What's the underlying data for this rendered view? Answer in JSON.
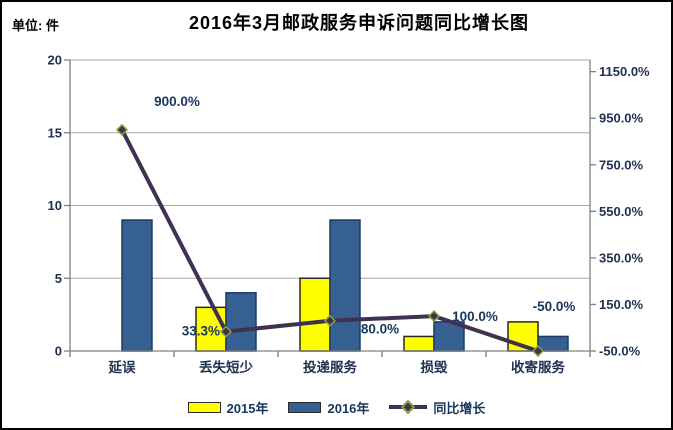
{
  "header": {
    "unit_label": "单位: 件",
    "title": "2016年3月邮政服务申诉问题同比增长图"
  },
  "chart_data": {
    "type": "bar",
    "subtype": "combo-bar-line-dual-axis",
    "title": "2016年3月邮政服务申诉问题同比增长图",
    "unit": "单位: 件",
    "categories": [
      "延误",
      "丢失短少",
      "投递服务",
      "损毁",
      "收寄服务"
    ],
    "series": [
      {
        "name": "2015年",
        "type": "bar",
        "axis": "left",
        "color": "#FFFF00",
        "border_color": "#262626",
        "values": [
          0,
          3,
          5,
          1,
          2
        ]
      },
      {
        "name": "2016年",
        "type": "bar",
        "axis": "left",
        "color": "#376092",
        "border_color": "#1F3864",
        "values": [
          9,
          4,
          9,
          2,
          1
        ]
      },
      {
        "name": "同比增长",
        "type": "line",
        "axis": "right",
        "color": "#403152",
        "marker": "diamond",
        "marker_edge_color": "#84A23B",
        "values": [
          900,
          33.3,
          80,
          100,
          -50
        ],
        "point_labels": [
          "900.0%",
          "33.3%",
          "80.0%",
          "100.0%",
          "-50.0%"
        ]
      }
    ],
    "left_axis": {
      "min": 0,
      "max": 20,
      "step": 5,
      "tick_labels": [
        "0",
        "5",
        "10",
        "15",
        "20"
      ]
    },
    "right_axis": {
      "min": -50,
      "max": 1200,
      "step": 200,
      "tick_labels": [
        "-50.0%",
        "150.0%",
        "350.0%",
        "550.0%",
        "750.0%",
        "950.0%",
        "1150.0%"
      ]
    },
    "grid": "horizontal",
    "legend_position": "bottom",
    "colors": {
      "grid": "#A8A8A8",
      "axis": "#808080",
      "tick_text": "#1F3050",
      "data_label_text": "#17375E",
      "title_text": "#000000"
    }
  }
}
